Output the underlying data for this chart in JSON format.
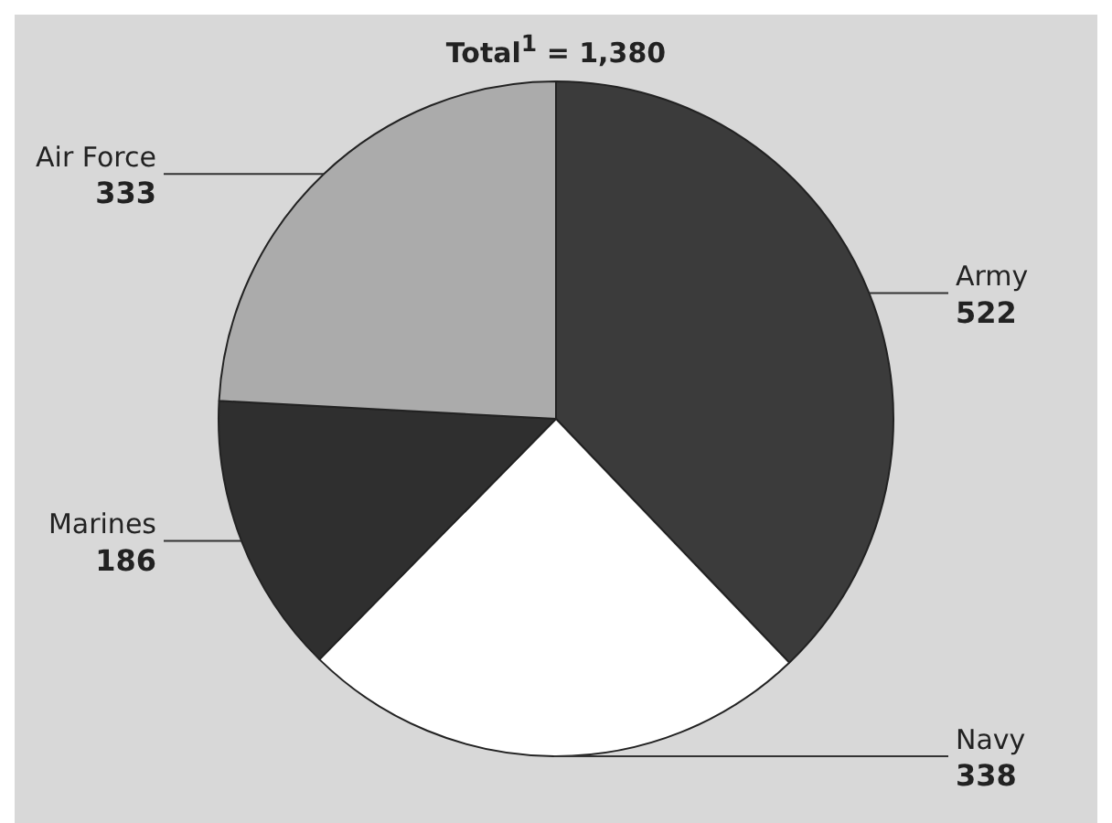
{
  "chart_data": {
    "type": "pie",
    "title": "Total$^{1}$ = 1,380",
    "categories": [
      "Army",
      "Navy",
      "Marines",
      "Air Force"
    ],
    "values": [
      522,
      338,
      186,
      333
    ],
    "colors": [
      "#3b3b3b",
      "#ffffff",
      "#2f2f2f",
      "#ababab"
    ],
    "data_labels": true,
    "legend": false
  }
}
